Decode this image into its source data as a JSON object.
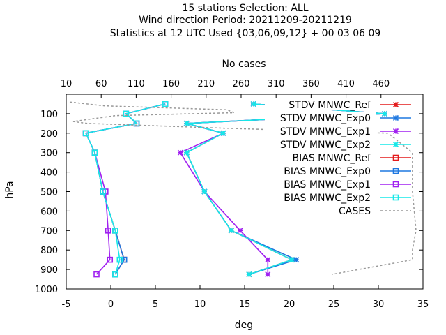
{
  "title_lines": [
    "15 stations Selection: ALL",
    "Wind direction  Period: 20211209-20211219",
    "Statistics at 12 UTC  Used {03,06,09,12} + 00 03 06 09"
  ],
  "chart_data": {
    "type": "line",
    "xlabel": "deg",
    "ylabel": "hPa",
    "x2label": "No cases",
    "xlim": [
      -5,
      35
    ],
    "ylim": [
      1000,
      0
    ],
    "x2lim": [
      10,
      520
    ],
    "x_ticks": [
      -5,
      0,
      5,
      10,
      15,
      20,
      25,
      30,
      35
    ],
    "y_ticks": [
      100,
      200,
      300,
      400,
      500,
      600,
      700,
      800,
      900,
      1000
    ],
    "x2_ticks": [
      10,
      60,
      110,
      160,
      210,
      260,
      310,
      360,
      410,
      460
    ],
    "grid": false,
    "legend_position": "top-right",
    "series": [
      {
        "name": "STDV MNWC_Ref",
        "color": "#e41a1c",
        "marker": "x-star",
        "style": "solid",
        "points": [
          [
            16.0,
            50
          ],
          [
            30.7,
            100
          ],
          [
            8.5,
            150
          ],
          [
            12.6,
            200
          ],
          [
            8.5,
            300
          ],
          [
            10.5,
            500
          ],
          [
            13.5,
            700
          ],
          [
            20.3,
            850
          ],
          [
            15.5,
            925
          ]
        ]
      },
      {
        "name": "STDV MNWC_Exp0",
        "color": "#1f78e0",
        "marker": "x-star",
        "style": "solid",
        "points": [
          [
            16.0,
            50
          ],
          [
            30.7,
            100
          ],
          [
            8.5,
            150
          ],
          [
            12.6,
            200
          ],
          [
            8.5,
            300
          ],
          [
            10.5,
            500
          ],
          [
            13.5,
            700
          ],
          [
            20.8,
            850
          ],
          [
            15.5,
            925
          ]
        ]
      },
      {
        "name": "STDV MNWC_Exp1",
        "color": "#a020f0",
        "marker": "x-star",
        "style": "solid",
        "points": [
          [
            16.0,
            50
          ],
          [
            30.7,
            100
          ],
          [
            8.5,
            150
          ],
          [
            12.6,
            200
          ],
          [
            7.8,
            300
          ],
          [
            10.5,
            500
          ],
          [
            14.5,
            700
          ],
          [
            17.6,
            850
          ],
          [
            17.6,
            925
          ]
        ]
      },
      {
        "name": "STDV MNWC_Exp2",
        "color": "#17e8e8",
        "marker": "x-star",
        "style": "solid",
        "points": [
          [
            16.0,
            50
          ],
          [
            30.7,
            100
          ],
          [
            8.5,
            150
          ],
          [
            12.6,
            200
          ],
          [
            8.5,
            300
          ],
          [
            10.5,
            500
          ],
          [
            13.5,
            700
          ],
          [
            20.3,
            850
          ],
          [
            15.5,
            925
          ]
        ]
      },
      {
        "name": "BIAS MNWC_Ref",
        "color": "#e41a1c",
        "marker": "square",
        "style": "solid",
        "points": [
          [
            6.1,
            50
          ],
          [
            1.7,
            100
          ],
          [
            2.9,
            150
          ],
          [
            -2.8,
            200
          ],
          [
            -1.8,
            300
          ],
          [
            -0.9,
            500
          ],
          [
            0.5,
            700
          ],
          [
            1.5,
            850
          ],
          [
            0.5,
            925
          ]
        ]
      },
      {
        "name": "BIAS MNWC_Exp0",
        "color": "#1f78e0",
        "marker": "square",
        "style": "solid",
        "points": [
          [
            6.1,
            50
          ],
          [
            1.7,
            100
          ],
          [
            2.9,
            150
          ],
          [
            -2.8,
            200
          ],
          [
            -1.8,
            300
          ],
          [
            -0.9,
            500
          ],
          [
            0.5,
            700
          ],
          [
            1.5,
            850
          ],
          [
            0.5,
            925
          ]
        ]
      },
      {
        "name": "BIAS MNWC_Exp1",
        "color": "#a020f0",
        "marker": "square",
        "style": "solid",
        "points": [
          [
            6.1,
            50
          ],
          [
            1.7,
            100
          ],
          [
            2.9,
            150
          ],
          [
            -2.8,
            200
          ],
          [
            -1.8,
            300
          ],
          [
            -0.6,
            500
          ],
          [
            -0.3,
            700
          ],
          [
            -0.1,
            850
          ],
          [
            -1.6,
            925
          ]
        ]
      },
      {
        "name": "BIAS MNWC_Exp2",
        "color": "#17e8e8",
        "marker": "square",
        "style": "solid",
        "points": [
          [
            6.1,
            50
          ],
          [
            1.7,
            100
          ],
          [
            2.9,
            150
          ],
          [
            -2.8,
            200
          ],
          [
            -1.8,
            300
          ],
          [
            -0.9,
            500
          ],
          [
            0.5,
            700
          ],
          [
            1.0,
            850
          ],
          [
            0.5,
            925
          ]
        ]
      },
      {
        "name": "CASES",
        "color": "#999999",
        "marker": "none",
        "style": "dashed",
        "axis": "x2",
        "points": [
          [
            15,
            40
          ],
          [
            65,
            60
          ],
          [
            240,
            80
          ],
          [
            250,
            95
          ],
          [
            80,
            110
          ],
          [
            20,
            140
          ],
          [
            40,
            150
          ],
          [
            240,
            175
          ],
          [
            470,
            200
          ],
          [
            505,
            300
          ],
          [
            505,
            500
          ],
          [
            510,
            700
          ],
          [
            505,
            800
          ],
          [
            505,
            850
          ],
          [
            390,
            925
          ]
        ]
      }
    ]
  }
}
